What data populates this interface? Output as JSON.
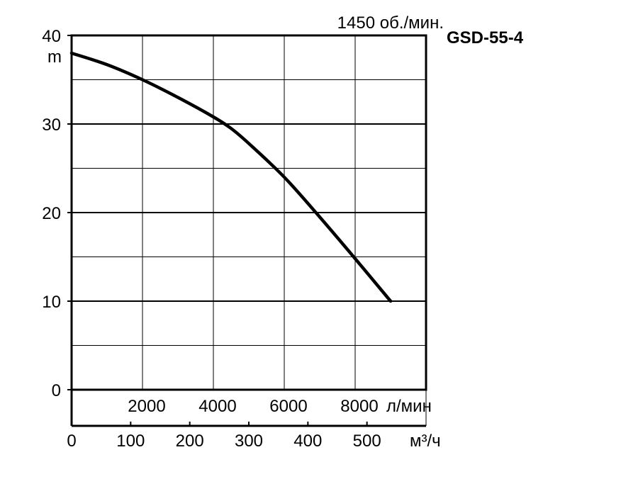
{
  "chart_data": {
    "type": "line",
    "title": "GSD-55-4",
    "subtitle": "1450 об./мин.",
    "ylabel": "m",
    "x_primary_unit": "л/мин",
    "x_secondary_unit": "м³/ч",
    "xlim": [
      0,
      10000
    ],
    "ylim": [
      0,
      40
    ],
    "grid": true,
    "y_ticks": [
      "0",
      "10",
      "20",
      "30",
      "40"
    ],
    "x_primary_ticks": [
      {
        "value": 2000,
        "label": "2000"
      },
      {
        "value": 4000,
        "label": "4000"
      },
      {
        "value": 6000,
        "label": "6000"
      },
      {
        "value": 8000,
        "label": "8000"
      }
    ],
    "x_secondary_ticks": [
      {
        "value": 0,
        "label": "0"
      },
      {
        "value": 100,
        "label": "100"
      },
      {
        "value": 200,
        "label": "200"
      },
      {
        "value": 300,
        "label": "300"
      },
      {
        "value": 400,
        "label": "400"
      },
      {
        "value": 500,
        "label": "500"
      }
    ],
    "series": [
      {
        "x": [
          0,
          1000,
          2000,
          3000,
          4000,
          4500,
          5000,
          6000,
          7000,
          8000,
          9000
        ],
        "y": [
          38,
          36.7,
          35,
          33,
          30.8,
          29.5,
          27.8,
          24,
          19.5,
          14.8,
          10
        ]
      }
    ]
  }
}
